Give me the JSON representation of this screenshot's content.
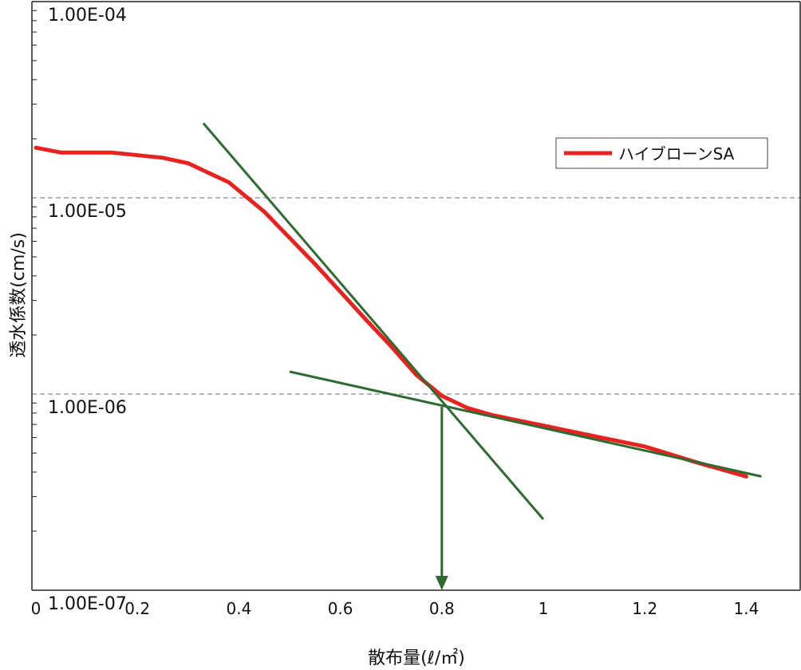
{
  "chart_data": {
    "type": "line",
    "xlabel": "散布量(ℓ/㎡)",
    "ylabel": "透水係数(cm/s)",
    "y_scale": "log",
    "xlim": [
      0,
      1.5
    ],
    "ylim": [
      1e-07,
      0.0001
    ],
    "x_ticks": [
      "0",
      "0.2",
      "0.4",
      "0.6",
      "0.8",
      "1",
      "1.2",
      "1.4"
    ],
    "y_ticks": [
      "1.00E-04",
      "1.00E-05",
      "1.00E-06",
      "1.00E-07"
    ],
    "grid": "dashed horizontal lines at 1.00E-05 and 1.00E-06",
    "legend_position": "top-right",
    "series": [
      {
        "name": "ハイブローンSA",
        "color": "#e8231f",
        "x": [
          0,
          0.05,
          0.15,
          0.25,
          0.3,
          0.38,
          0.45,
          0.55,
          0.65,
          0.7,
          0.75,
          0.8,
          0.85,
          0.9,
          1.0,
          1.1,
          1.2,
          1.3,
          1.4
        ],
        "y": [
          1.8e-05,
          1.7e-05,
          1.7e-05,
          1.6e-05,
          1.5e-05,
          1.2e-05,
          8.5e-06,
          4.6e-06,
          2.4e-06,
          1.75e-06,
          1.25e-06,
          9.8e-07,
          8.5e-07,
          7.8e-07,
          6.9e-07,
          6.1e-07,
          5.4e-07,
          4.5e-07,
          3.8e-07
        ]
      }
    ],
    "tangent_lines": [
      {
        "color": "#2e6b30",
        "x": [
          0.33,
          1.0
        ],
        "y": [
          2.4e-05,
          2.3e-07
        ]
      },
      {
        "color": "#2e6b30",
        "x": [
          0.5,
          1.43
        ],
        "y": [
          1.3e-06,
          3.8e-07
        ]
      }
    ],
    "intersection_arrow": {
      "color": "#2e6b30",
      "x": 0.8,
      "y_from": 8.6e-07,
      "y_to": 1e-07
    }
  }
}
